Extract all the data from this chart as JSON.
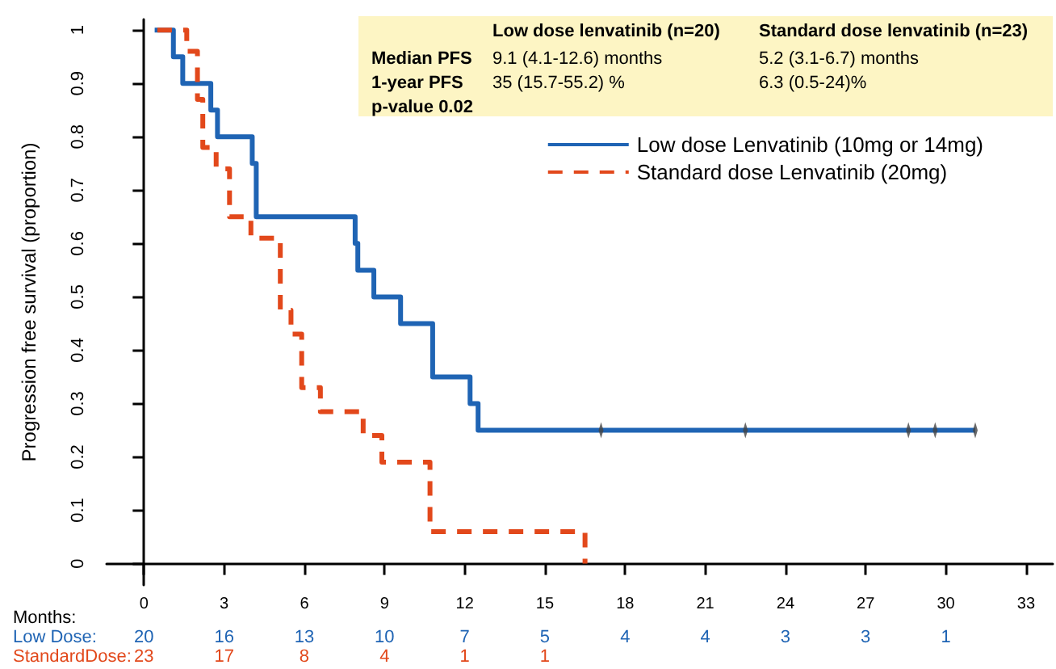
{
  "chart_data": {
    "type": "step",
    "ylabel": "Progression free survival (proportion)",
    "xlabel": "Months:",
    "xlim": [
      -1.4,
      34
    ],
    "xticks": [
      0,
      3,
      6,
      9,
      12,
      15,
      18,
      21,
      24,
      27,
      30,
      33
    ],
    "ylim": [
      -0.04,
      1.02
    ],
    "yticks": [
      0,
      0.1,
      0.2,
      0.3,
      0.4,
      0.5,
      0.6,
      0.7,
      0.8,
      0.9,
      1
    ],
    "legend": "top right",
    "series": [
      {
        "name": "Low dose Lenvatinib (10mg or 14mg)",
        "color": "#1f64b4",
        "line_style": "solid",
        "x": [
          0.4,
          1.1,
          1.1,
          1.45,
          1.45,
          2.5,
          2.5,
          2.75,
          2.75,
          4.05,
          4.05,
          4.2,
          4.2,
          7.9,
          7.9,
          8.0,
          8.0,
          8.6,
          8.6,
          9.6,
          9.6,
          10.8,
          10.8,
          12.2,
          12.2,
          12.5,
          12.5,
          31.1
        ],
        "values": [
          1,
          1,
          0.95,
          0.95,
          0.9,
          0.9,
          0.85,
          0.85,
          0.8,
          0.8,
          0.75,
          0.75,
          0.65,
          0.65,
          0.6,
          0.6,
          0.55,
          0.55,
          0.5,
          0.5,
          0.45,
          0.45,
          0.35,
          0.35,
          0.3,
          0.3,
          0.25,
          0.25
        ]
      },
      {
        "type": "scatter",
        "color": "#444444",
        "x": [
          17.1,
          22.5,
          28.6,
          29.6,
          31.1
        ],
        "values": [
          0.25,
          0.25,
          0.25,
          0.25,
          0.25
        ]
      },
      {
        "name": "Standard dose Lenvatinib (20mg)",
        "color": "#e2481b",
        "line_style": "dashed",
        "x": [
          0.5,
          1.6,
          1.6,
          2.0,
          2.0,
          2.2,
          2.2,
          2.7,
          2.7,
          3.2,
          3.2,
          4.0,
          4.0,
          5.1,
          5.1,
          5.5,
          5.5,
          5.9,
          5.9,
          6.6,
          6.6,
          8.2,
          8.2,
          8.9,
          8.9,
          10.7,
          10.7,
          16.5,
          16.5
        ],
        "values": [
          1,
          1,
          0.96,
          0.96,
          0.87,
          0.87,
          0.78,
          0.78,
          0.74,
          0.74,
          0.65,
          0.65,
          0.61,
          0.61,
          0.475,
          0.475,
          0.43,
          0.43,
          0.33,
          0.33,
          0.285,
          0.285,
          0.24,
          0.24,
          0.19,
          0.19,
          0.06,
          0.06,
          0
        ]
      }
    ],
    "annotations": [
      "Low dose lenvatinib (n=20)",
      "Standard dose lenvatinib (n=23)",
      "Median PFS",
      "9.1 (4.1-12.6) months",
      "5.2 (3.1-6.7) months",
      "1-year PFS",
      "35 (15.7-55.2) %",
      "6.3 (0.5-24)%",
      "p-value 0.02",
      "Low Dose:",
      "20 16 13 10 7 5 4 4 3 3 1",
      "StandardDose:",
      "23 17 8 4 1 1"
    ]
  }
}
